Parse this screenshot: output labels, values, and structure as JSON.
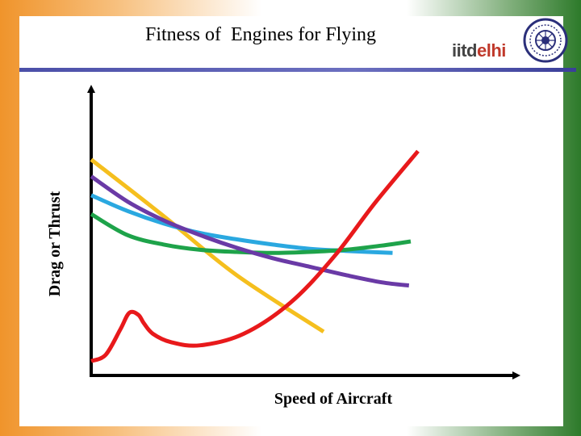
{
  "header": {
    "title": "Fitness of  Engines for Flying",
    "logo_part1": "iitd",
    "logo_part2": "elhi"
  },
  "colors": {
    "drag": "#e8191b",
    "yellow": "#f5bf1e",
    "purple": "#6a3aa6",
    "blue": "#2aa8e0",
    "green": "#1ea34a"
  },
  "chart_data": {
    "type": "line",
    "title": "Fitness of  Engines for Flying",
    "xlabel": "Speed of Aircraft",
    "ylabel": "Drag or Thrust",
    "xlim": [
      0,
      10
    ],
    "ylim": [
      0,
      10
    ],
    "grid": false,
    "legend": "none",
    "series": [
      {
        "color": "#e8191b",
        "x": [
          0,
          0.4,
          0.8,
          1.05,
          1.3,
          1.45,
          1.7,
          2.2,
          3.0,
          4.2,
          5.5,
          6.7,
          7.8,
          9.0
        ],
        "y": [
          0.3,
          0.6,
          1.8,
          2.6,
          2.5,
          2.1,
          1.6,
          1.2,
          1.05,
          1.6,
          3.1,
          5.3,
          7.8,
          10.3
        ]
      },
      {
        "color": "#f5bf1e",
        "x": [
          0,
          2,
          4,
          6.4
        ],
        "y": [
          9.9,
          7.2,
          4.4,
          1.7
        ]
      },
      {
        "color": "#6a3aa6",
        "x": [
          0,
          1,
          2,
          3,
          4,
          5,
          6,
          7,
          8,
          8.75
        ],
        "y": [
          9.1,
          7.9,
          7.0,
          6.3,
          5.7,
          5.2,
          4.8,
          4.4,
          4.05,
          3.9
        ]
      },
      {
        "color": "#2aa8e0",
        "x": [
          0,
          1,
          2,
          3,
          4,
          5,
          6,
          7,
          8.3
        ],
        "y": [
          8.2,
          7.45,
          6.85,
          6.4,
          6.1,
          5.85,
          5.65,
          5.55,
          5.45
        ]
      },
      {
        "color": "#1ea34a",
        "x": [
          0,
          1,
          2,
          3,
          4,
          5,
          6,
          7,
          8,
          8.8
        ],
        "y": [
          7.3,
          6.3,
          5.85,
          5.6,
          5.5,
          5.45,
          5.5,
          5.6,
          5.8,
          6.0
        ]
      }
    ]
  }
}
